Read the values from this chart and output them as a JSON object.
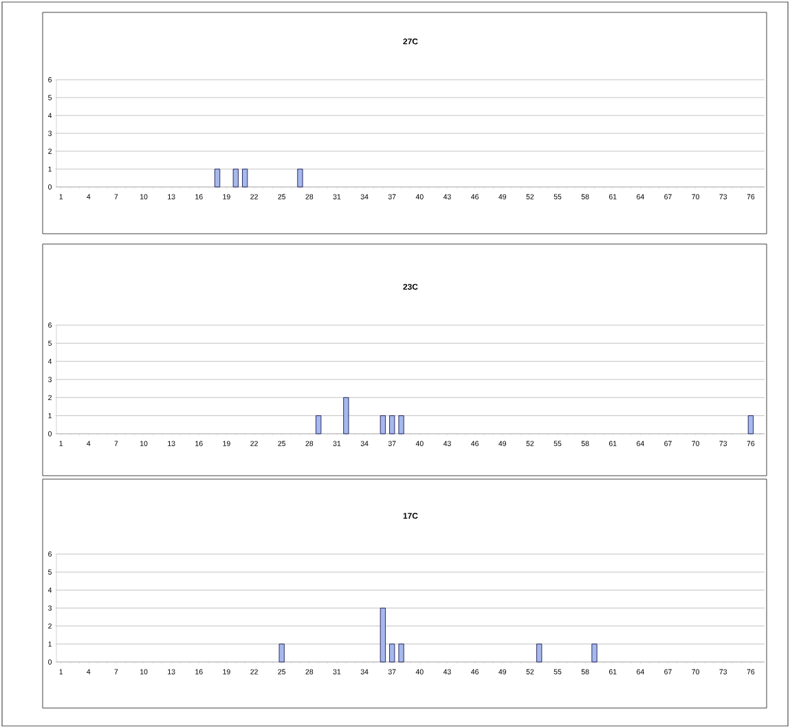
{
  "chart_data": [
    {
      "type": "bar",
      "title": "27C",
      "categories": [
        "1",
        null,
        null,
        "4",
        null,
        null,
        "7",
        null,
        null,
        "10",
        null,
        null,
        "13",
        null,
        null,
        "16",
        null,
        null,
        "19",
        null,
        null,
        "22",
        null,
        null,
        "25",
        null,
        null,
        "28",
        null,
        null,
        "31",
        null,
        null,
        "34",
        null,
        null,
        "37",
        null,
        null,
        "40",
        null,
        null,
        "43",
        null,
        null,
        "46",
        null,
        null,
        "49",
        null,
        null,
        "52",
        null,
        null,
        "55",
        null,
        null,
        "58",
        null,
        null,
        "61",
        null,
        null,
        "64",
        null,
        null,
        "67",
        null,
        null,
        "70",
        null,
        null,
        "73",
        null,
        null,
        "76",
        null
      ],
      "values": [
        0,
        0,
        0,
        0,
        0,
        0,
        0,
        0,
        0,
        0,
        0,
        0,
        0,
        0,
        0,
        0,
        0,
        1,
        0,
        1,
        1,
        0,
        0,
        0,
        0,
        0,
        1,
        0,
        0,
        0,
        0,
        0,
        0,
        0,
        0,
        0,
        0,
        0,
        0,
        0,
        0,
        0,
        0,
        0,
        0,
        0,
        0,
        0,
        0,
        0,
        0,
        0,
        0,
        0,
        0,
        0,
        0,
        0,
        0,
        0,
        0,
        0,
        0,
        0,
        0,
        0,
        0,
        0,
        0,
        0,
        0,
        0,
        0,
        0,
        0,
        0,
        0
      ],
      "color": "#a6b8ec",
      "ylim": [
        0,
        6
      ],
      "yticks": [
        0,
        1,
        2,
        3,
        4,
        5,
        6
      ],
      "grid": "y"
    },
    {
      "type": "bar",
      "title": "23C",
      "categories": [
        "1",
        null,
        null,
        "4",
        null,
        null,
        "7",
        null,
        null,
        "10",
        null,
        null,
        "13",
        null,
        null,
        "16",
        null,
        null,
        "19",
        null,
        null,
        "22",
        null,
        null,
        "25",
        null,
        null,
        "28",
        null,
        null,
        "31",
        null,
        null,
        "34",
        null,
        null,
        "37",
        null,
        null,
        "40",
        null,
        null,
        "43",
        null,
        null,
        "46",
        null,
        null,
        "49",
        null,
        null,
        "52",
        null,
        null,
        "55",
        null,
        null,
        "58",
        null,
        null,
        "61",
        null,
        null,
        "64",
        null,
        null,
        "67",
        null,
        null,
        "70",
        null,
        null,
        "73",
        null,
        null,
        "76",
        null
      ],
      "values": [
        0,
        0,
        0,
        0,
        0,
        0,
        0,
        0,
        0,
        0,
        0,
        0,
        0,
        0,
        0,
        0,
        0,
        0,
        0,
        0,
        0,
        0,
        0,
        0,
        0,
        0,
        0,
        0,
        1,
        0,
        0,
        2,
        0,
        0,
        0,
        1,
        1,
        1,
        0,
        0,
        0,
        0,
        0,
        0,
        0,
        0,
        0,
        0,
        0,
        0,
        0,
        0,
        0,
        0,
        0,
        0,
        0,
        0,
        0,
        0,
        0,
        0,
        0,
        0,
        0,
        0,
        0,
        0,
        0,
        0,
        0,
        0,
        0,
        0,
        0,
        1,
        0
      ],
      "color": "#a6b8ec",
      "ylim": [
        0,
        6
      ],
      "yticks": [
        0,
        1,
        2,
        3,
        4,
        5,
        6
      ],
      "grid": "y"
    },
    {
      "type": "bar",
      "title": "17C",
      "categories": [
        "1",
        null,
        null,
        "4",
        null,
        null,
        "7",
        null,
        null,
        "10",
        null,
        null,
        "13",
        null,
        null,
        "16",
        null,
        null,
        "19",
        null,
        null,
        "22",
        null,
        null,
        "25",
        null,
        null,
        "28",
        null,
        null,
        "31",
        null,
        null,
        "34",
        null,
        null,
        "37",
        null,
        null,
        "40",
        null,
        null,
        "43",
        null,
        null,
        "46",
        null,
        null,
        "49",
        null,
        null,
        "52",
        null,
        null,
        "55",
        null,
        null,
        "58",
        null,
        null,
        "61",
        null,
        null,
        "64",
        null,
        null,
        "67",
        null,
        null,
        "70",
        null,
        null,
        "73",
        null,
        null,
        "76",
        null
      ],
      "values": [
        0,
        0,
        0,
        0,
        0,
        0,
        0,
        0,
        0,
        0,
        0,
        0,
        0,
        0,
        0,
        0,
        0,
        0,
        0,
        0,
        0,
        0,
        0,
        0,
        1,
        0,
        0,
        0,
        0,
        0,
        0,
        0,
        0,
        0,
        0,
        3,
        1,
        1,
        0,
        0,
        0,
        0,
        0,
        0,
        0,
        0,
        0,
        0,
        0,
        0,
        0,
        0,
        1,
        0,
        0,
        0,
        0,
        0,
        1,
        0,
        0,
        0,
        0,
        0,
        0,
        0,
        0,
        0,
        0,
        0,
        0,
        0,
        0,
        0,
        0,
        0,
        0
      ],
      "color": "#a6b8ec",
      "ylim": [
        0,
        6
      ],
      "yticks": [
        0,
        1,
        2,
        3,
        4,
        5,
        6
      ],
      "grid": "y"
    }
  ]
}
